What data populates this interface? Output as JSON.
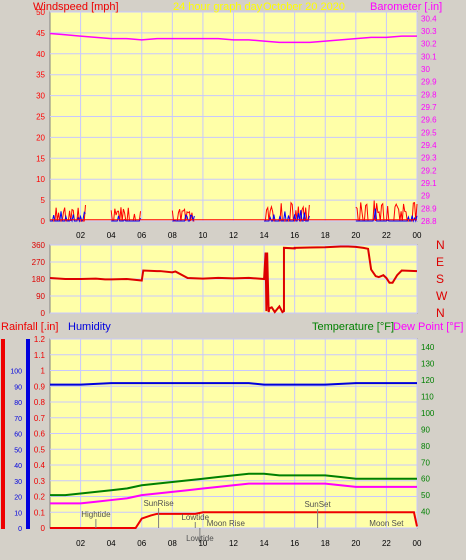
{
  "colors": {
    "background": "#d4d0c8",
    "plot_bg": "#ffffa8",
    "grid": "#c8c8ff",
    "wind": "#ff0000",
    "gust": "#0000ff",
    "barometer": "#ff00ff",
    "direction": "#dd0000",
    "rainfall": "#ee0000",
    "humidity": "#0000dd",
    "temperature": "#008000",
    "dewpoint": "#ff00ff",
    "title": "#ffff00"
  },
  "header": {
    "windspeed_label": "Windspeed [mph]",
    "title": "24 hour graph day",
    "date": "October 20 2020",
    "barometer_label": "Barometer [.in]"
  },
  "lower_header": {
    "rainfall_label": "Rainfall [.in]",
    "humidity_label": "Humidity",
    "temperature_label": "Temperature [°F]",
    "dewpoint_label": "Dew Point [°F]"
  },
  "x_ticks": [
    "02",
    "04",
    "06",
    "08",
    "10",
    "12",
    "14",
    "16",
    "18",
    "20",
    "22",
    "00"
  ],
  "chart_data": [
    {
      "type": "line",
      "name": "wind-barometer",
      "x_range": [
        0,
        24
      ],
      "y_left": {
        "label": "Windspeed [mph]",
        "ticks": [
          0,
          5,
          10,
          15,
          20,
          25,
          30,
          35,
          40,
          45,
          50
        ],
        "range": [
          0,
          50
        ]
      },
      "y_right": {
        "label": "Barometer [.in]",
        "ticks": [
          "28.8",
          "28.9",
          "29",
          "29.1",
          "29.2",
          "29.3",
          "29.4",
          "29.5",
          "29.6",
          "29.7",
          "29.8",
          "29.9",
          "30",
          "30.1",
          "30.2",
          "30.3",
          "30.4"
        ],
        "range": [
          28.8,
          30.45
        ]
      },
      "series": [
        {
          "name": "Barometer",
          "axis": "right",
          "color": "#ff00ff",
          "x": [
            0,
            1,
            2,
            3,
            4,
            5,
            6,
            7,
            8,
            9,
            10,
            11,
            12,
            13,
            14,
            15,
            16,
            17,
            18,
            19,
            20,
            21,
            22,
            23,
            24
          ],
          "y": [
            30.28,
            30.27,
            30.26,
            30.25,
            30.24,
            30.24,
            30.23,
            30.24,
            30.24,
            30.24,
            30.24,
            30.24,
            30.23,
            30.23,
            30.22,
            30.21,
            30.21,
            30.21,
            30.22,
            30.23,
            30.24,
            30.25,
            30.25,
            30.26,
            30.26
          ]
        }
      ],
      "wind_bursts": [
        {
          "from": 0.0,
          "to": 2.4,
          "max": 4
        },
        {
          "from": 4.0,
          "to": 6.0,
          "max": 3.5
        },
        {
          "from": 8.0,
          "to": 9.5,
          "max": 3
        },
        {
          "from": 14.0,
          "to": 17.0,
          "max": 4.5
        },
        {
          "from": 20.0,
          "to": 24.0,
          "max": 5
        }
      ]
    },
    {
      "type": "line",
      "name": "wind-direction",
      "x_range": [
        0,
        24
      ],
      "y_left": {
        "ticks": [
          0,
          90,
          180,
          270,
          360
        ],
        "range": [
          0,
          360
        ]
      },
      "y_right": {
        "labels": [
          "N",
          "W",
          "S",
          "E",
          "N"
        ]
      },
      "series": [
        {
          "name": "Direction",
          "color": "#dd0000",
          "x": [
            0,
            1.0,
            2.0,
            3.0,
            3.6,
            4.0,
            5.0,
            6.0,
            6.1,
            7.0,
            7.2,
            8.0,
            8.2,
            9.0,
            10.0,
            11.0,
            12.0,
            13.0,
            14.0,
            14.1,
            14.15,
            14.2,
            14.3,
            14.35,
            14.5,
            14.7,
            15.0,
            15.2,
            15.3,
            15.3,
            16.0,
            16.0,
            17.0,
            18.0,
            18.5,
            19.0,
            19.5,
            20.0,
            20.5,
            20.8,
            21.0,
            21.3,
            21.5,
            21.8,
            22.0,
            22.2,
            22.4,
            22.7,
            23.0,
            24.0
          ],
          "y": [
            185,
            180,
            180,
            182,
            178,
            178,
            180,
            172,
            225,
            222,
            222,
            215,
            220,
            185,
            182,
            186,
            183,
            186,
            180,
            320,
            10,
            320,
            5,
            25,
            30,
            5,
            35,
            5,
            10,
            345,
            342,
            345,
            347,
            348,
            350,
            352,
            352,
            350,
            345,
            340,
            230,
            195,
            190,
            200,
            185,
            160,
            160,
            200,
            225,
            222
          ]
        }
      ]
    },
    {
      "type": "line",
      "name": "temperature-humidity-rain",
      "x_range": [
        0,
        24
      ],
      "y_left": {
        "label": "Rainfall [.in]",
        "ticks": [
          "0",
          "0.1",
          "0.2",
          "0.3",
          "0.4",
          "0.5",
          "0.6",
          "0.7",
          "0.8",
          "0.9",
          "1",
          "1.1",
          "1.2"
        ],
        "range": [
          0,
          1.2
        ]
      },
      "y_left_humidity": {
        "label": "Humidity",
        "ticks": [
          0,
          10,
          20,
          30,
          40,
          50,
          60,
          70,
          80,
          90,
          100
        ],
        "range": [
          0,
          100
        ]
      },
      "y_right": {
        "label": "Temperature [°F]",
        "ticks": [
          40,
          50,
          60,
          70,
          80,
          90,
          100,
          110,
          120,
          130,
          140
        ],
        "range": [
          30,
          145
        ]
      },
      "series": [
        {
          "name": "Humidity",
          "color": "#0000dd",
          "x": [
            0,
            2,
            4,
            6,
            8,
            10,
            12,
            13,
            14,
            15,
            16,
            17,
            18,
            20,
            22,
            24
          ],
          "y": [
            91,
            91,
            92,
            92,
            92,
            92,
            92,
            92,
            91,
            91,
            91,
            91,
            91,
            92,
            92,
            92
          ]
        },
        {
          "name": "Temperature",
          "color": "#008000",
          "x": [
            0,
            1,
            2,
            3,
            4,
            5,
            6,
            7,
            8,
            9,
            10,
            11,
            12,
            13,
            14,
            15,
            16,
            17,
            18,
            19,
            20,
            21,
            22,
            23,
            24
          ],
          "y": [
            50,
            50,
            51,
            52,
            53,
            54,
            56,
            57,
            58,
            59,
            60,
            61,
            62,
            63,
            63,
            62,
            62,
            62,
            62,
            61,
            60,
            60,
            60,
            60,
            60
          ]
        },
        {
          "name": "Dew Point",
          "color": "#ff00ff",
          "x": [
            0,
            1,
            2,
            3,
            4,
            5,
            6,
            7,
            8,
            9,
            10,
            11,
            12,
            13,
            14,
            15,
            16,
            17,
            18,
            19,
            20,
            21,
            22,
            23,
            24
          ],
          "y": [
            45,
            45,
            45,
            46,
            47,
            48,
            50,
            51,
            52,
            53,
            54,
            55,
            56,
            57,
            57,
            57,
            57,
            57,
            57,
            56,
            55,
            55,
            55,
            55,
            55
          ]
        },
        {
          "name": "Rainfall",
          "color": "#ee0000",
          "x": [
            0,
            5.6,
            5.8,
            6.0,
            6.6,
            7.0,
            8.0,
            9.5,
            10.0,
            12.0,
            14.0,
            18.0,
            22.0,
            23.8,
            24
          ],
          "y": [
            0,
            0,
            0.03,
            0.06,
            0.08,
            0.09,
            0.09,
            0.09,
            0.1,
            0.1,
            0.1,
            0.1,
            0.1,
            0.1,
            0.01
          ]
        }
      ],
      "events": [
        {
          "label": "Hightide",
          "x": 3.0
        },
        {
          "label": "SunRise",
          "x": 7.1
        },
        {
          "label": "Lowtide",
          "x": 9.5
        },
        {
          "label": "Moon Rise",
          "x": 11.5
        },
        {
          "label": "SunSet",
          "x": 17.5
        },
        {
          "label": "Moon Set",
          "x": 22.0
        },
        {
          "label": "Lowtide",
          "x": 9.8
        }
      ]
    }
  ]
}
